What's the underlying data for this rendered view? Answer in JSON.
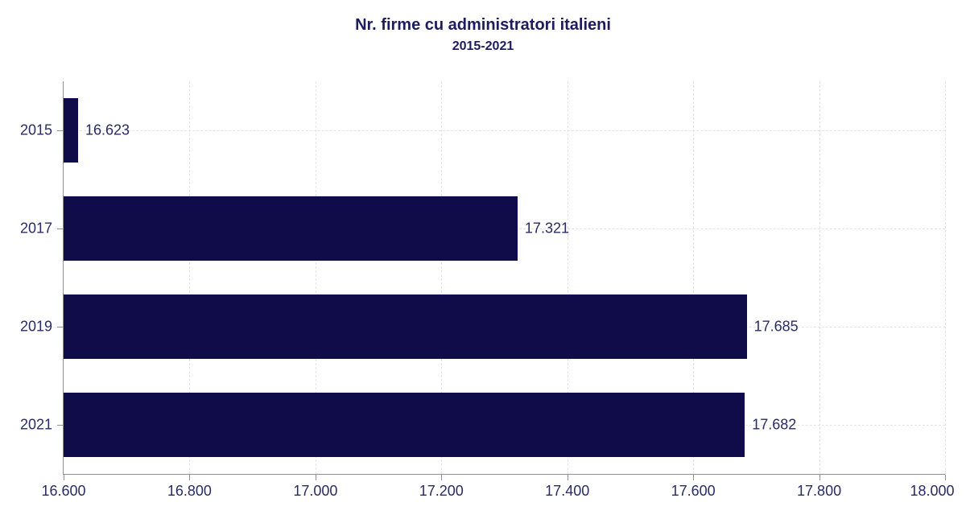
{
  "chart_data": {
    "type": "bar",
    "orientation": "horizontal",
    "title": "Nr. firme cu administratori italieni",
    "subtitle": "2015-2021",
    "categories": [
      "2015",
      "2017",
      "2019",
      "2021"
    ],
    "values": [
      16623,
      17321,
      17685,
      17682
    ],
    "value_labels": [
      "16.623",
      "17.321",
      "17.685",
      "17.682"
    ],
    "xlim": [
      16600,
      18000
    ],
    "x_ticks": [
      16600,
      16800,
      17000,
      17200,
      17400,
      17600,
      17800,
      18000
    ],
    "x_tick_labels": [
      "16.600",
      "16.800",
      "17.000",
      "17.200",
      "17.400",
      "17.600",
      "17.800",
      "18.000"
    ],
    "grid": true,
    "legend_position": "none",
    "colors": {
      "bar": "#0f0c49",
      "title": "#1c1c5f",
      "label": "#282c64",
      "axis": "#909090",
      "grid": "#e4e4e4",
      "background": "#ffffff"
    }
  }
}
